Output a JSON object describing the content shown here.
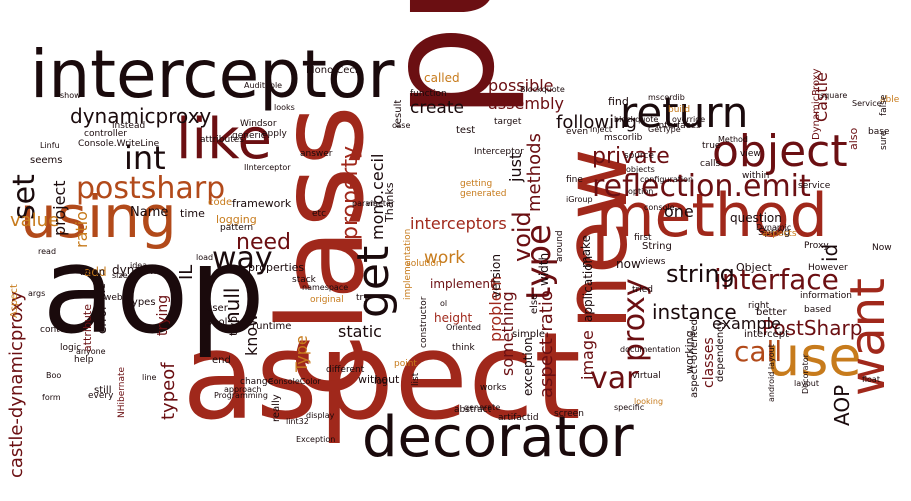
{
  "palette": {
    "background": "#ffffff",
    "black": "#1a0a0c",
    "darkred": "#6b0f12",
    "red": "#a0281b",
    "burnt": "#b24a1a",
    "orange": "#c77b1c",
    "gold": "#c9a227"
  },
  "words": [
    {
      "text": "aspect"
    },
    {
      "text": "public"
    },
    {
      "text": "class"
    },
    {
      "text": "aop"
    },
    {
      "text": "interceptor"
    },
    {
      "text": "decorator"
    },
    {
      "text": "new"
    },
    {
      "text": "method"
    },
    {
      "text": "using"
    },
    {
      "text": "like"
    },
    {
      "text": "return"
    },
    {
      "text": "object"
    },
    {
      "text": "use"
    },
    {
      "text": "want"
    },
    {
      "text": "get"
    },
    {
      "text": "reflection.emit"
    },
    {
      "text": "postsharp"
    },
    {
      "text": "type"
    },
    {
      "text": "int"
    },
    {
      "text": "set"
    },
    {
      "text": "way"
    },
    {
      "text": "interface"
    },
    {
      "text": "var"
    },
    {
      "text": "proxy"
    },
    {
      "text": "call"
    },
    {
      "text": "dynamicproxy"
    },
    {
      "text": "void"
    },
    {
      "text": "string"
    },
    {
      "text": "need"
    },
    {
      "text": "property"
    },
    {
      "text": "value"
    },
    {
      "text": "private"
    },
    {
      "text": "PostSharp"
    },
    {
      "text": "instance"
    },
    {
      "text": "null"
    },
    {
      "text": "castle-dynamicproxy"
    },
    {
      "text": "aspect-ratio"
    },
    {
      "text": "assembly"
    },
    {
      "text": "create"
    },
    {
      "text": "following"
    },
    {
      "text": "possible"
    },
    {
      "text": "interceptors"
    },
    {
      "text": "methods"
    },
    {
      "text": "typeof"
    },
    {
      "text": "Castle"
    },
    {
      "text": "AOP"
    },
    {
      "text": "example"
    },
    {
      "text": "know"
    },
    {
      "text": "mono.cecil"
    },
    {
      "text": "something"
    },
    {
      "text": "static"
    },
    {
      "text": "called"
    },
    {
      "text": "project"
    },
    {
      "text": "ratio"
    },
    {
      "text": "id"
    },
    {
      "text": "Type"
    },
    {
      "text": "image"
    },
    {
      "text": "work"
    },
    {
      "text": "application"
    },
    {
      "text": "just"
    },
    {
      "text": "IL"
    },
    {
      "text": "Name"
    },
    {
      "text": "problem"
    },
    {
      "text": "one"
    },
    {
      "text": "classes"
    },
    {
      "text": "trying"
    },
    {
      "text": "exception"
    },
    {
      "text": "dynamic"
    },
    {
      "text": "version"
    },
    {
      "text": "Mono.Cecil"
    },
    {
      "text": "question"
    },
    {
      "text": "logging"
    },
    {
      "text": "width"
    },
    {
      "text": "height"
    },
    {
      "text": "framework"
    },
    {
      "text": "Thanks"
    },
    {
      "text": "implement"
    },
    {
      "text": "add"
    },
    {
      "text": "error"
    },
    {
      "text": "properties"
    },
    {
      "text": "time"
    },
    {
      "text": "make"
    },
    {
      "text": "attribute"
    },
    {
      "text": "Aspect"
    },
    {
      "text": "test"
    },
    {
      "text": "file"
    },
    {
      "text": "working"
    },
    {
      "text": "now"
    },
    {
      "text": "still"
    },
    {
      "text": "Object"
    },
    {
      "text": "two"
    },
    {
      "text": "Interceptor"
    },
    {
      "text": "implementation"
    },
    {
      "text": "aspect-oriented"
    },
    {
      "text": "DynamicProxy"
    },
    {
      "text": "else"
    },
    {
      "text": "find"
    },
    {
      "text": "end"
    },
    {
      "text": "really"
    },
    {
      "text": "also"
    },
    {
      "text": "String"
    },
    {
      "text": "However"
    },
    {
      "text": "bean"
    },
    {
      "text": "without"
    },
    {
      "text": "simple"
    },
    {
      "text": "views"
    },
    {
      "text": "Spring"
    },
    {
      "text": "NHibernate"
    },
    {
      "text": "service"
    },
    {
      "text": "dependency"
    },
    {
      "text": "code"
    },
    {
      "text": "pattern"
    },
    {
      "text": "constructor"
    },
    {
      "text": "user"
    },
    {
      "text": "bool"
    },
    {
      "text": "seems"
    },
    {
      "text": "web"
    },
    {
      "text": "controller"
    },
    {
      "text": "generated"
    },
    {
      "text": "getting"
    },
    {
      "text": "log"
    },
    {
      "text": "runtime"
    },
    {
      "text": "try"
    },
    {
      "text": "first"
    },
    {
      "text": "types"
    },
    {
      "text": "list"
    },
    {
      "text": "source"
    },
    {
      "text": "Windsor"
    },
    {
      "text": "instead"
    },
    {
      "text": "result"
    },
    {
      "text": "tried"
    },
    {
      "text": "mscorlib"
    },
    {
      "text": "interfaces"
    },
    {
      "text": "target"
    },
    {
      "text": "answer"
    },
    {
      "text": "stack"
    },
    {
      "text": "attributes"
    },
    {
      "text": "build"
    },
    {
      "text": "function"
    },
    {
      "text": "around"
    },
    {
      "text": "better"
    },
    {
      "text": "approach"
    },
    {
      "text": "intercept"
    },
    {
      "text": "even"
    },
    {
      "text": "solution"
    },
    {
      "text": "original"
    },
    {
      "text": "context"
    },
    {
      "text": "logic"
    },
    {
      "text": "help"
    },
    {
      "text": "fine"
    },
    {
      "text": "calls"
    },
    {
      "text": "right"
    },
    {
      "text": "view"
    },
    {
      "text": "true"
    },
    {
      "text": "based"
    },
    {
      "text": "information"
    },
    {
      "text": "aspects"
    },
    {
      "text": "android layout"
    },
    {
      "text": "Decorator"
    },
    {
      "text": "base"
    },
    {
      "text": "Now"
    },
    {
      "text": "sure"
    },
    {
      "text": "able"
    },
    {
      "text": "false"
    },
    {
      "text": "screen"
    },
    {
      "text": "artifactid"
    },
    {
      "text": "generate"
    },
    {
      "text": "change"
    },
    {
      "text": "different"
    },
    {
      "text": "works"
    },
    {
      "text": "abstract"
    },
    {
      "text": "virtual"
    },
    {
      "text": "specific"
    },
    {
      "text": "looking"
    },
    {
      "text": "apply"
    },
    {
      "text": "generic"
    },
    {
      "text": "Console.WriteLine"
    },
    {
      "text": "every"
    },
    {
      "text": "Proxy"
    },
    {
      "text": "display"
    },
    {
      "text": "Oriented"
    },
    {
      "text": "point"
    },
    {
      "text": "within"
    },
    {
      "text": "think"
    },
    {
      "text": "etc"
    },
    {
      "text": "option"
    },
    {
      "text": "Programming"
    },
    {
      "text": "lint32"
    },
    {
      "text": "Ilnterceptor"
    },
    {
      "text": "override"
    },
    {
      "text": "documentation"
    },
    {
      "text": "configuration"
    },
    {
      "text": "Auditable"
    },
    {
      "text": "Blockquote"
    },
    {
      "text": "args"
    },
    {
      "text": "Exception"
    },
    {
      "text": "GetType"
    },
    {
      "text": "ConsoleColor"
    },
    {
      "text": "mscordib"
    },
    {
      "text": "layout"
    },
    {
      "text": "Dynamic"
    },
    {
      "text": "Method"
    },
    {
      "text": "Service"
    },
    {
      "text": "anyone"
    },
    {
      "text": "size"
    },
    {
      "text": "ol"
    },
    {
      "text": "via"
    },
    {
      "text": "idea"
    },
    {
      "text": "load"
    },
    {
      "text": "float"
    },
    {
      "text": "square"
    },
    {
      "text": "read"
    },
    {
      "text": "show"
    },
    {
      "text": "looks"
    },
    {
      "text": "case"
    },
    {
      "text": "Linfu"
    },
    {
      "text": "form"
    },
    {
      "text": "Boo"
    },
    {
      "text": "line"
    },
    {
      "text": "iGroup"
    },
    {
      "text": "namespace"
    },
    {
      "text": "parameter"
    },
    {
      "text": "console"
    },
    {
      "text": "objects"
    },
    {
      "text": "inject"
    },
    {
      "text": "blockquote"
    },
    {
      "text": "images"
    }
  ]
}
